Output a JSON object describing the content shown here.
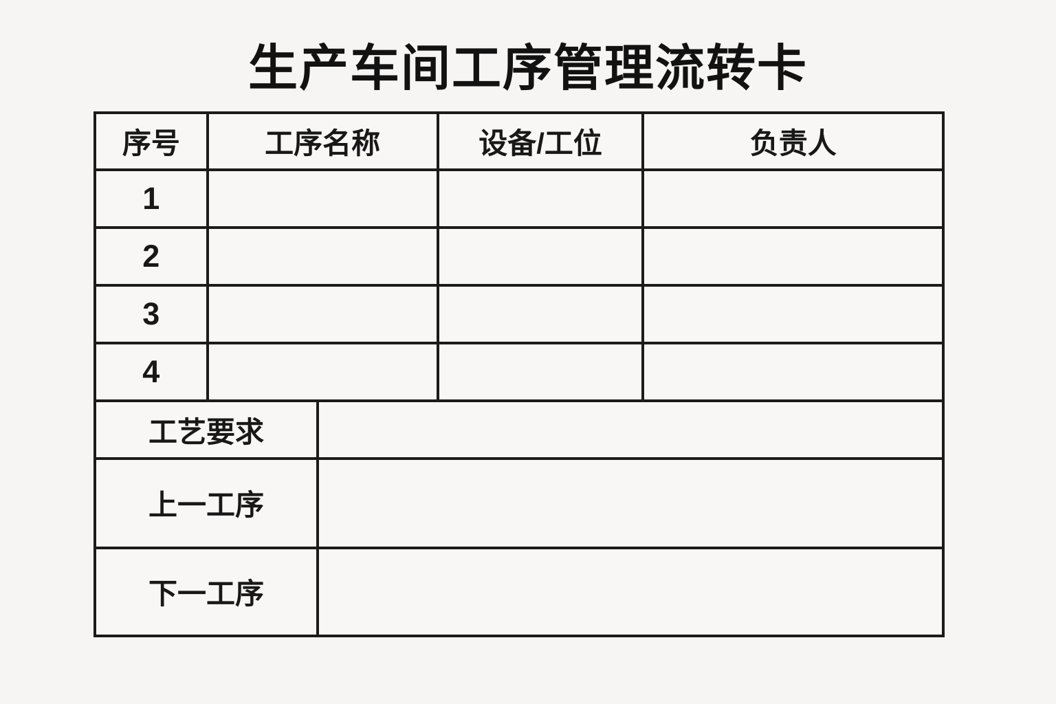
{
  "page": {
    "background_color": "#f6f5f3",
    "border_color": "#1b1b1b",
    "cell_background_color": "#f8f7f6",
    "text_color": "#161616"
  },
  "title": "生产车间工序管理流转卡",
  "process_table": {
    "columns": [
      "序号",
      "工序名称",
      "设备/工位",
      "负责人"
    ],
    "rows": [
      {
        "index": "1",
        "process_name": "",
        "equipment": "",
        "owner": ""
      },
      {
        "index": "2",
        "process_name": "",
        "equipment": "",
        "owner": ""
      },
      {
        "index": "3",
        "process_name": "",
        "equipment": "",
        "owner": ""
      },
      {
        "index": "4",
        "process_name": "",
        "equipment": "",
        "owner": ""
      }
    ]
  },
  "detail_rows": [
    {
      "label": "工艺要求",
      "value": ""
    },
    {
      "label": "上一工序",
      "value": ""
    },
    {
      "label": "下一工序",
      "value": ""
    }
  ]
}
